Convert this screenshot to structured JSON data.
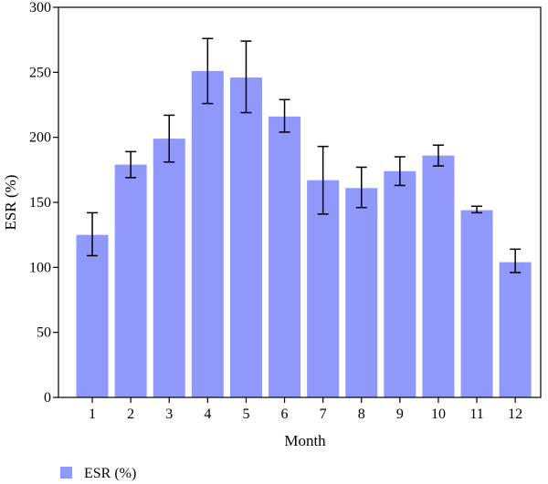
{
  "chart_data": {
    "type": "bar",
    "xlabel": "Month",
    "ylabel": "ESR (%)",
    "categories": [
      "1",
      "2",
      "3",
      "4",
      "5",
      "6",
      "7",
      "8",
      "9",
      "10",
      "11",
      "12"
    ],
    "series": [
      {
        "name": "ESR (%)",
        "values": [
          125,
          179,
          199,
          251,
          246,
          216,
          167,
          161,
          174,
          186,
          144,
          104
        ],
        "error_low": [
          109,
          169,
          181,
          226,
          219,
          204,
          141,
          146,
          163,
          178,
          142,
          96
        ],
        "error_high": [
          142,
          189,
          217,
          276,
          274,
          229,
          193,
          177,
          185,
          194,
          147,
          114
        ],
        "color": "#9099fb"
      }
    ],
    "ylim": [
      0,
      300
    ],
    "yticks": [
      0,
      50,
      100,
      150,
      200,
      250,
      300
    ],
    "grid": false,
    "legend_position": "bottom-left"
  }
}
